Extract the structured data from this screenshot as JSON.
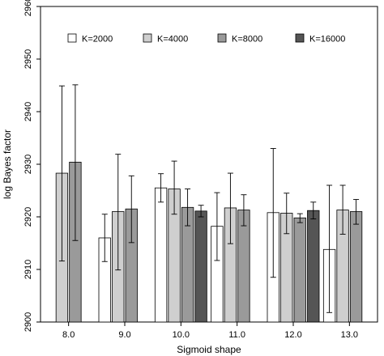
{
  "chart_data": {
    "type": "bar",
    "title": "",
    "xlabel": "Sigmoid shape",
    "ylabel": "log Bayes factor",
    "categories": [
      "8.0",
      "9.0",
      "10.0",
      "11.0",
      "12.0",
      "13.0"
    ],
    "ylim": [
      2900,
      2960
    ],
    "yticks": [
      2900,
      2910,
      2920,
      2930,
      2940,
      2950,
      2960
    ],
    "grid": false,
    "legend_position": "top",
    "series": [
      {
        "name": "K=2000",
        "color": "#ffffff",
        "values": [
          null,
          2916.0,
          2925.5,
          2918.2,
          2920.8,
          2913.8
        ],
        "err_low": [
          null,
          2911.5,
          2922.8,
          2911.7,
          2908.5,
          2901.8
        ],
        "err_high": [
          null,
          2920.5,
          2928.2,
          2924.6,
          2933.0,
          2926.0
        ]
      },
      {
        "name": "K=4000",
        "color": "#cfcfcf",
        "values": [
          2928.3,
          2921.0,
          2925.3,
          2921.7,
          2920.7,
          2921.3
        ],
        "err_low": [
          2911.6,
          2909.9,
          2920.5,
          2914.9,
          2916.8,
          2916.7
        ],
        "err_high": [
          2944.9,
          2931.9,
          2930.6,
          2928.3,
          2924.5,
          2926.0
        ]
      },
      {
        "name": "K=8000",
        "color": "#9a9a9a",
        "values": [
          2930.4,
          2921.5,
          2921.8,
          2921.3,
          2919.8,
          2921.0
        ],
        "err_low": [
          2915.5,
          2915.1,
          2918.3,
          2918.3,
          2918.9,
          2918.6
        ],
        "err_high": [
          2945.1,
          2927.8,
          2925.3,
          2924.2,
          2920.6,
          2923.3
        ]
      },
      {
        "name": "K=16000",
        "color": "#555555",
        "values": [
          null,
          null,
          2921.1,
          null,
          2921.2,
          null
        ],
        "err_low": [
          null,
          null,
          2920.0,
          null,
          2919.6,
          null
        ],
        "err_high": [
          null,
          null,
          2922.2,
          null,
          2922.8,
          null
        ]
      }
    ],
    "legend": [
      {
        "label": "K=2000",
        "color": "#ffffff"
      },
      {
        "label": "K=4000",
        "color": "#cfcfcf"
      },
      {
        "label": "K=8000",
        "color": "#9a9a9a"
      },
      {
        "label": "K=16000",
        "color": "#555555"
      }
    ]
  }
}
